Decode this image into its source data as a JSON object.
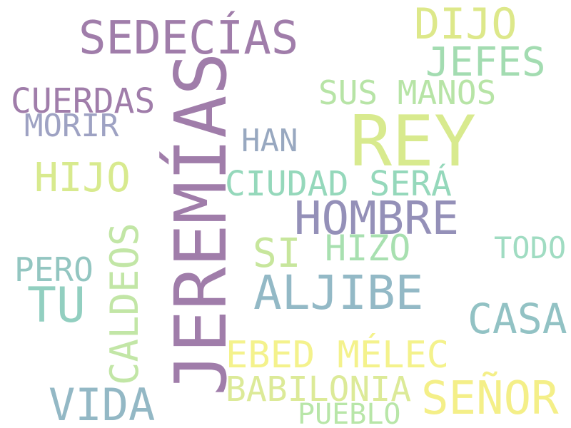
{
  "words": [
    {
      "text": "JEREMÍAS",
      "color": "#a07daa"
    },
    {
      "text": "REY",
      "color": "#d8ea8e"
    },
    {
      "text": "SEDECÍAS",
      "color": "#a07daa"
    },
    {
      "text": "DIJO",
      "color": "#dde88a"
    },
    {
      "text": "JEFES",
      "color": "#a3dcb1"
    },
    {
      "text": "SUS MANOS",
      "color": "#b7e4a6"
    },
    {
      "text": "CUERDAS",
      "color": "#a07daa"
    },
    {
      "text": "MORIR",
      "color": "#9ea2c3"
    },
    {
      "text": "HAN",
      "color": "#98a8c0"
    },
    {
      "text": "HIJO",
      "color": "#d8ea8e"
    },
    {
      "text": "CIUDAD SERÁ",
      "color": "#95d8bb"
    },
    {
      "text": "HOMBRE",
      "color": "#9490b8"
    },
    {
      "text": "SI",
      "color": "#c7e69c"
    },
    {
      "text": "HIZO",
      "color": "#a8e0b0"
    },
    {
      "text": "TODO",
      "color": "#a0dcc2"
    },
    {
      "text": "PERO",
      "color": "#93c6c1"
    },
    {
      "text": "CALDEOS",
      "color": "#c2e6a6"
    },
    {
      "text": "TU",
      "color": "#92cfc0"
    },
    {
      "text": "ALJIBE",
      "color": "#93b9c6"
    },
    {
      "text": "CASA",
      "color": "#92c2c4"
    },
    {
      "text": "EBED MÉLEC",
      "color": "#f4f28c"
    },
    {
      "text": "BABILONIA",
      "color": "#dcea98"
    },
    {
      "text": "SEÑOR",
      "color": "#f4ef88"
    },
    {
      "text": "VIDA",
      "color": "#93b8c5"
    },
    {
      "text": "PUEBLO",
      "color": "#b8e6a8"
    }
  ]
}
